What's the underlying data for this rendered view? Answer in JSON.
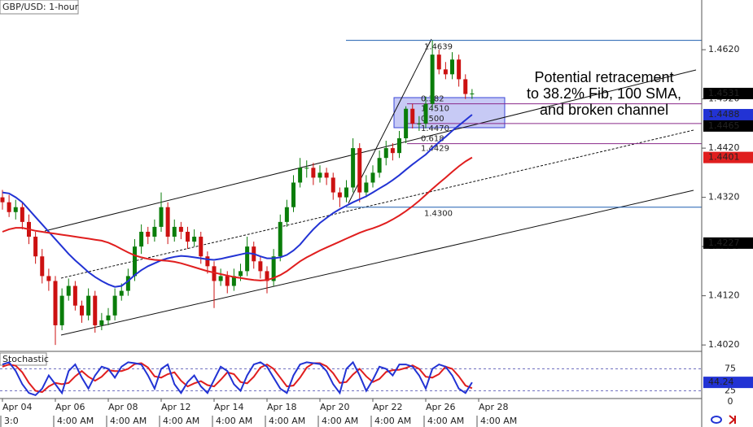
{
  "chart_data": {
    "type": "candlestick",
    "title": "GBP/USD: 1-hour",
    "categories": [
      "Apr 04",
      null,
      null,
      null,
      null,
      null,
      null,
      null,
      "Apr 06",
      null,
      null,
      null,
      null,
      null,
      null,
      null,
      "Apr 08",
      null,
      null,
      null,
      null,
      null,
      null,
      null,
      "Apr 12",
      null,
      null,
      null,
      null,
      null,
      null,
      null,
      "Apr 14",
      null,
      null,
      null,
      null,
      null,
      null,
      null,
      "Apr 18",
      null,
      null,
      null,
      null,
      null,
      null,
      null,
      "Apr 20",
      null,
      null,
      null,
      null,
      null,
      null,
      null,
      "Apr 22",
      null,
      null,
      null,
      null,
      null,
      null,
      null,
      "Apr 26",
      null,
      null,
      null,
      null,
      null,
      null,
      null,
      "Apr 28"
    ],
    "time_labels": [
      "3:0",
      null,
      null,
      null,
      null,
      null,
      null,
      null,
      "4:00 AM",
      null,
      null,
      null,
      null,
      null,
      null,
      null,
      "4:00 AM",
      null,
      null,
      null,
      null,
      null,
      null,
      null,
      "4:00 AM",
      null,
      null,
      null,
      null,
      null,
      null,
      null,
      "4:00 AM",
      null,
      null,
      null,
      null,
      null,
      null,
      null,
      "4:00 AM",
      null,
      null,
      null,
      null,
      null,
      null,
      null,
      "4:00 AM",
      null,
      null,
      null,
      null,
      null,
      null,
      null,
      "4:00 AM",
      null,
      null,
      null,
      null,
      null,
      null,
      null,
      "4:00 AM",
      null,
      null,
      null,
      null,
      null,
      null,
      null,
      "4:00 AM"
    ],
    "open": [
      1.432,
      1.431,
      1.429,
      1.43,
      1.427,
      1.424,
      1.42,
      1.416,
      1.415,
      1.406,
      1.412,
      1.414,
      1.41,
      1.408,
      1.412,
      1.406,
      1.407,
      1.408,
      1.412,
      1.413,
      1.416,
      1.422,
      1.425,
      1.424,
      1.426,
      1.43,
      1.424,
      1.426,
      1.425,
      1.423,
      1.424,
      1.42,
      1.418,
      1.415,
      1.416,
      1.414,
      1.416,
      1.417,
      1.422,
      1.419,
      1.417,
      1.415,
      1.42,
      1.427,
      1.43,
      1.435,
      1.438,
      1.438,
      1.436,
      1.437,
      1.436,
      1.433,
      1.432,
      1.434,
      1.442,
      1.433,
      1.435,
      1.437,
      1.44,
      1.442,
      1.441,
      1.444,
      1.45,
      1.447,
      1.447,
      1.451,
      1.461,
      1.458,
      1.457,
      1.46,
      1.456,
      1.453,
      null
    ],
    "high": [
      1.4335,
      1.4325,
      1.4315,
      1.431,
      1.4285,
      1.425,
      1.4215,
      1.4175,
      1.416,
      1.4135,
      1.4155,
      1.415,
      1.411,
      1.4135,
      1.413,
      1.4085,
      1.4095,
      1.4135,
      1.4145,
      1.4175,
      1.4235,
      1.4265,
      1.426,
      1.4275,
      1.433,
      1.431,
      1.4275,
      1.427,
      1.426,
      1.4255,
      1.425,
      1.421,
      1.419,
      1.4175,
      1.417,
      1.4175,
      1.4185,
      1.424,
      1.423,
      1.42,
      1.418,
      1.4215,
      1.4285,
      1.4315,
      1.4365,
      1.44,
      1.4395,
      1.439,
      1.4385,
      1.438,
      1.437,
      1.434,
      1.4355,
      1.444,
      1.443,
      1.4365,
      1.4385,
      1.4415,
      1.4435,
      1.443,
      1.4455,
      1.4505,
      1.451,
      1.4485,
      1.4525,
      1.4639,
      1.462,
      1.4595,
      1.4615,
      1.461,
      1.457,
      1.454,
      null
    ],
    "low": [
      1.4295,
      1.428,
      1.4275,
      1.4255,
      1.4225,
      1.4185,
      1.4145,
      1.413,
      1.402,
      1.405,
      1.411,
      1.409,
      1.4065,
      1.407,
      1.4045,
      1.405,
      1.406,
      1.407,
      1.411,
      1.412,
      1.415,
      1.4205,
      1.4225,
      1.423,
      1.425,
      1.4225,
      1.423,
      1.4235,
      1.4215,
      1.422,
      1.4185,
      1.4165,
      1.4095,
      1.414,
      1.4125,
      1.413,
      1.415,
      1.416,
      1.4175,
      1.4155,
      1.4125,
      1.414,
      1.419,
      1.426,
      1.429,
      1.434,
      1.436,
      1.4345,
      1.435,
      1.4345,
      1.4315,
      1.43,
      1.431,
      1.433,
      1.431,
      1.432,
      1.434,
      1.436,
      1.4385,
      1.4395,
      1.44,
      1.443,
      1.446,
      1.4455,
      1.446,
      1.45,
      1.457,
      1.456,
      1.456,
      1.4545,
      1.452,
      1.452,
      null
    ],
    "close": [
      1.431,
      1.429,
      1.43,
      1.427,
      1.424,
      1.42,
      1.416,
      1.415,
      1.406,
      1.412,
      1.414,
      1.41,
      1.408,
      1.412,
      1.406,
      1.407,
      1.408,
      1.412,
      1.413,
      1.416,
      1.422,
      1.425,
      1.424,
      1.426,
      1.43,
      1.424,
      1.426,
      1.425,
      1.423,
      1.424,
      1.42,
      1.418,
      1.415,
      1.416,
      1.414,
      1.416,
      1.417,
      1.422,
      1.419,
      1.417,
      1.415,
      1.42,
      1.427,
      1.43,
      1.435,
      1.438,
      1.438,
      1.436,
      1.437,
      1.436,
      1.433,
      1.432,
      1.434,
      1.442,
      1.433,
      1.435,
      1.437,
      1.44,
      1.442,
      1.441,
      1.444,
      1.45,
      1.447,
      1.447,
      1.451,
      1.461,
      1.458,
      1.457,
      1.46,
      1.456,
      1.453,
      1.4531,
      null
    ],
    "up_color": "#0a7d0a",
    "down_color": "#cc1111",
    "last_color": "#000000",
    "sma": [
      {
        "color": "#2233d4",
        "values": [
          1.433,
          1.4328,
          1.432,
          1.431,
          1.4295,
          1.428,
          1.4265,
          1.425,
          1.4235,
          1.422,
          1.4205,
          1.4192,
          1.418,
          1.4168,
          1.4158,
          1.415,
          1.4143,
          1.4138,
          1.414,
          1.415,
          1.4162,
          1.4172,
          1.418,
          1.4186,
          1.4192,
          1.4196,
          1.4199,
          1.4201,
          1.42,
          1.4198,
          1.4196,
          1.4194,
          1.4193,
          1.4195,
          1.4198,
          1.4201,
          1.4204,
          1.4207,
          1.4205,
          1.42,
          1.4196,
          1.4196,
          1.4198,
          1.4203,
          1.4212,
          1.4224,
          1.424,
          1.4255,
          1.4268,
          1.4278,
          1.4288,
          1.4296,
          1.4303,
          1.431,
          1.4316,
          1.4322,
          1.433,
          1.4338,
          1.4346,
          1.4355,
          1.4365,
          1.4376,
          1.4387,
          1.4397,
          1.4407,
          1.442,
          1.4432,
          1.4443,
          1.4455,
          1.4466,
          1.4477,
          1.4488,
          null
        ]
      },
      {
        "color": "#e01e1e",
        "values": [
          1.425,
          1.4255,
          1.4258,
          1.4258,
          1.4255,
          1.4252,
          1.425,
          1.4248,
          1.4246,
          1.4244,
          1.4242,
          1.424,
          1.4238,
          1.4236,
          1.4234,
          1.4232,
          1.4228,
          1.4222,
          1.4215,
          1.4208,
          1.4202,
          1.4198,
          1.4195,
          1.4193,
          1.4192,
          1.4191,
          1.4189,
          1.4186,
          1.4182,
          1.4178,
          1.4174,
          1.417,
          1.4167,
          1.4164,
          1.4161,
          1.4158,
          1.4156,
          1.4154,
          1.4152,
          1.4151,
          1.4152,
          1.4156,
          1.4162,
          1.417,
          1.418,
          1.419,
          1.4198,
          1.4205,
          1.4212,
          1.4218,
          1.4224,
          1.423,
          1.4236,
          1.4242,
          1.4248,
          1.4253,
          1.4257,
          1.4262,
          1.4268,
          1.4275,
          1.4283,
          1.4292,
          1.4302,
          1.4313,
          1.4325,
          1.4337,
          1.4349,
          1.436,
          1.4372,
          1.4383,
          1.4393,
          1.4401,
          null
        ]
      }
    ],
    "ylim": [
      1.4007,
      1.4721
    ],
    "yticks": [
      {
        "value": 1.402,
        "label": "1.4020"
      },
      {
        "value": 1.412,
        "label": "1.4120"
      },
      {
        "value": 1.422,
        "label": "1.4220"
      },
      {
        "value": 1.432,
        "label": "1.4320"
      },
      {
        "value": 1.442,
        "label": "1.4420"
      },
      {
        "value": 1.452,
        "label": "1.4520"
      },
      {
        "value": 1.462,
        "label": "1.4620"
      }
    ],
    "price_markers": [
      {
        "value": 1.4465,
        "color": "#000000"
      },
      {
        "value": 1.4227,
        "color": "#000000"
      }
    ],
    "levels": [
      {
        "value": 1.4639,
        "color": "#1f5fb0"
      },
      {
        "value": {
          "value": 1.43,
          "label": "1.4300"
        },
        "color": "#1f5fb0"
      }
    ],
    "fib_levels": [
      {
        "ratio": 0.382,
        "price": {
          "value": 1.451,
          "label": "1.4510"
        }
      },
      {
        "ratio": {
          "value": 0.5,
          "label": "0.500"
        },
        "price": {
          "value": 1.447,
          "label": "1.4470"
        }
      },
      {
        "ratio": 0.618,
        "price": 1.4429
      }
    ],
    "fib_color": "#8a2a8a",
    "annotation": [
      "Potential retracement",
      "to 38.2% Fib, 100 SMA,",
      "and broken channel"
    ],
    "stochastic": {
      "title": "Stochastic",
      "ylim": [
        0,
        113
      ],
      "yticks": [
        0,
        25,
        75
      ],
      "grid": true,
      "k": {
        "color": "#2233d4",
        "values": [
          85,
          90,
          70,
          40,
          20,
          15,
          30,
          60,
          40,
          20,
          70,
          85,
          55,
          30,
          60,
          80,
          75,
          55,
          80,
          90,
          88,
          85,
          60,
          30,
          75,
          85,
          40,
          20,
          45,
          60,
          35,
          20,
          50,
          80,
          70,
          40,
          25,
          60,
          85,
          90,
          80,
          55,
          30,
          20,
          60,
          85,
          90,
          88,
          86,
          70,
          40,
          20,
          75,
          90,
          60,
          25,
          50,
          80,
          75,
          60,
          85,
          85,
          80,
          60,
          30,
          75,
          85,
          80,
          60,
          30,
          20,
          44.24,
          null
        ]
      },
      "d": {
        "color": "#e01e1e",
        "values": [
          80,
          85,
          82,
          67,
          43,
          25,
          22,
          35,
          43,
          40,
          43,
          58,
          70,
          57,
          48,
          57,
          72,
          70,
          70,
          75,
          86,
          88,
          78,
          58,
          55,
          63,
          67,
          48,
          35,
          42,
          47,
          38,
          35,
          50,
          67,
          63,
          45,
          42,
          57,
          78,
          85,
          75,
          55,
          35,
          37,
          55,
          78,
          88,
          88,
          81,
          65,
          43,
          45,
          62,
          75,
          58,
          45,
          52,
          68,
          72,
          73,
          77,
          83,
          75,
          57,
          55,
          63,
          80,
          75,
          58,
          37,
          31,
          null
        ]
      }
    }
  }
}
